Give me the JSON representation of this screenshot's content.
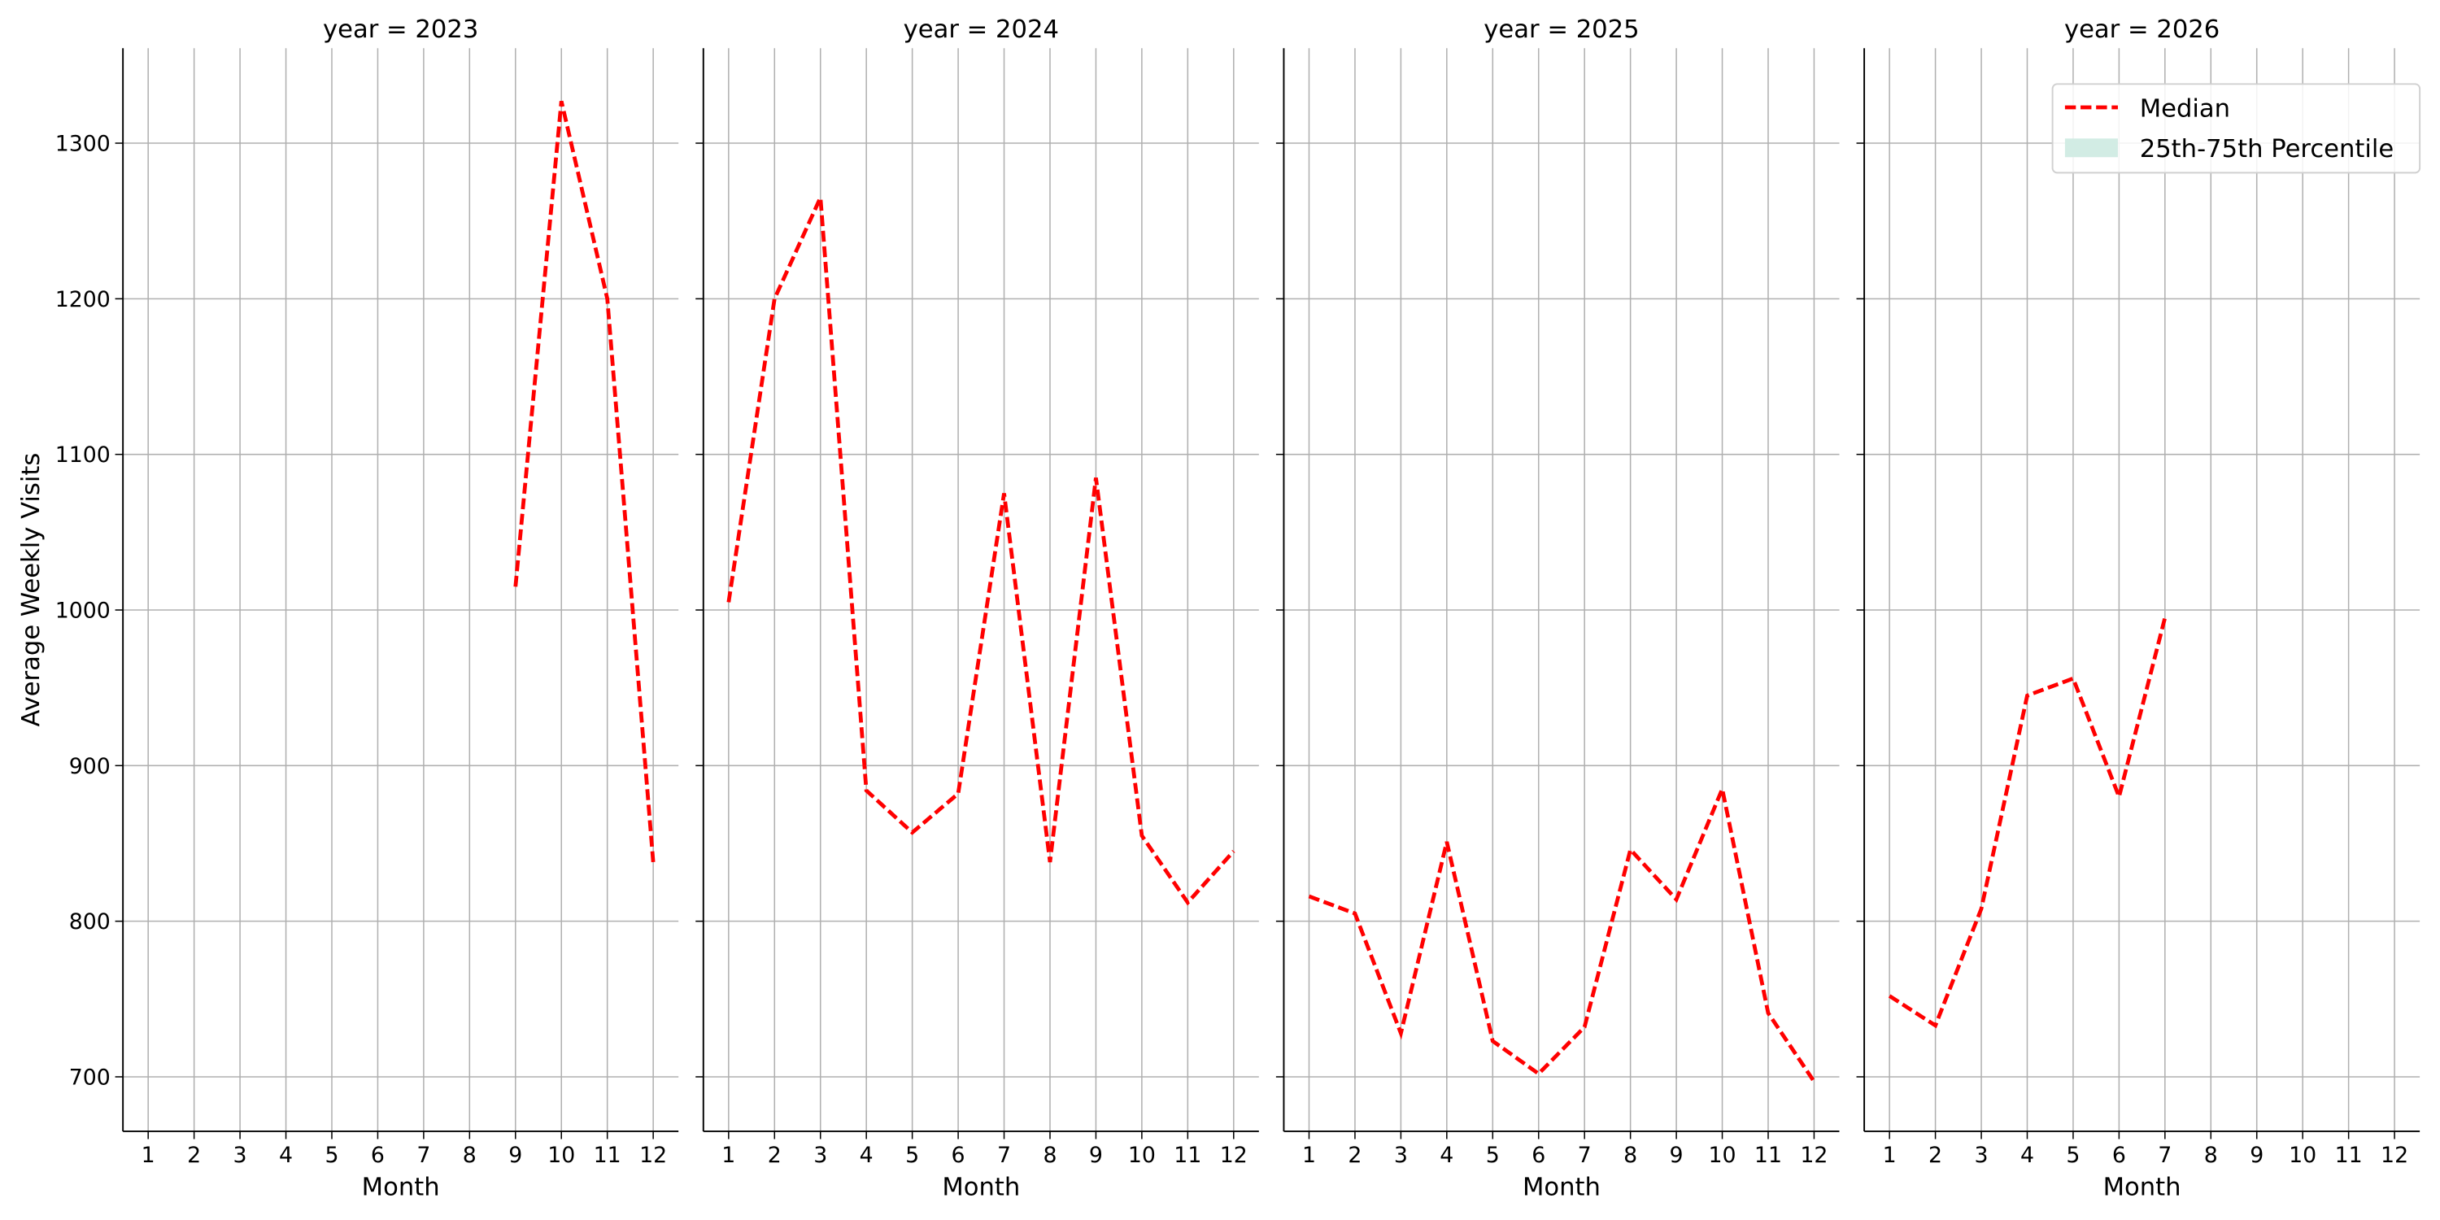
{
  "chart_data": [
    {
      "type": "line",
      "title": "year = 2023",
      "xlabel": "Month",
      "ylabel": "Average Weekly Visits",
      "x": [
        1,
        2,
        3,
        4,
        5,
        6,
        7,
        8,
        9,
        10,
        11,
        12
      ],
      "xlim": [
        0.45,
        12.55
      ],
      "xticks": [
        1,
        2,
        3,
        4,
        5,
        6,
        7,
        8,
        9,
        10,
        11,
        12
      ],
      "ylim": [
        665,
        1361
      ],
      "yticks": [
        700,
        800,
        900,
        1000,
        1100,
        1200,
        1300
      ],
      "show_ytick_labels": true,
      "grid": true,
      "series": [
        {
          "color": "#ff0000",
          "style": "dashed",
          "values": [
            null,
            null,
            null,
            null,
            null,
            null,
            null,
            null,
            1015,
            1327,
            1200,
            838
          ]
        }
      ]
    },
    {
      "type": "line",
      "title": "year = 2024",
      "xlabel": "Month",
      "x": [
        1,
        2,
        3,
        4,
        5,
        6,
        7,
        8,
        9,
        10,
        11,
        12
      ],
      "xlim": [
        0.45,
        12.55
      ],
      "xticks": [
        1,
        2,
        3,
        4,
        5,
        6,
        7,
        8,
        9,
        10,
        11,
        12
      ],
      "ylim": [
        665,
        1361
      ],
      "yticks": [
        700,
        800,
        900,
        1000,
        1100,
        1200,
        1300
      ],
      "show_ytick_labels": false,
      "grid": true,
      "series": [
        {
          "color": "#ff0000",
          "style": "dashed",
          "values": [
            1005,
            1200,
            1265,
            884,
            857,
            882,
            1075,
            838,
            1085,
            855,
            812,
            845
          ]
        }
      ]
    },
    {
      "type": "line",
      "title": "year = 2025",
      "xlabel": "Month",
      "x": [
        1,
        2,
        3,
        4,
        5,
        6,
        7,
        8,
        9,
        10,
        11,
        12
      ],
      "xlim": [
        0.45,
        12.55
      ],
      "xticks": [
        1,
        2,
        3,
        4,
        5,
        6,
        7,
        8,
        9,
        10,
        11,
        12
      ],
      "ylim": [
        665,
        1361
      ],
      "yticks": [
        700,
        800,
        900,
        1000,
        1100,
        1200,
        1300
      ],
      "show_ytick_labels": false,
      "grid": true,
      "series": [
        {
          "color": "#ff0000",
          "style": "dashed",
          "values": [
            816,
            805,
            728,
            851,
            723,
            702,
            732,
            846,
            814,
            885,
            741,
            697
          ]
        }
      ]
    },
    {
      "type": "line",
      "title": "year = 2026",
      "xlabel": "Month",
      "x": [
        1,
        2,
        3,
        4,
        5,
        6,
        7,
        8,
        9,
        10,
        11,
        12
      ],
      "xlim": [
        0.45,
        12.55
      ],
      "xticks": [
        1,
        2,
        3,
        4,
        5,
        6,
        7,
        8,
        9,
        10,
        11,
        12
      ],
      "ylim": [
        665,
        1361
      ],
      "yticks": [
        700,
        800,
        900,
        1000,
        1100,
        1200,
        1300
      ],
      "show_ytick_labels": false,
      "grid": true,
      "series": [
        {
          "color": "#ff0000",
          "style": "dashed",
          "values": [
            752,
            733,
            808,
            945,
            956,
            880,
            995,
            null,
            null,
            null,
            null,
            null
          ]
        }
      ],
      "legend": {
        "position": "upper right",
        "entries": [
          {
            "label": "Median",
            "color": "#ff0000",
            "style": "dashed"
          },
          {
            "label": "25th-75th Percentile",
            "color": "#d2ece4",
            "style": "band"
          }
        ]
      }
    }
  ]
}
